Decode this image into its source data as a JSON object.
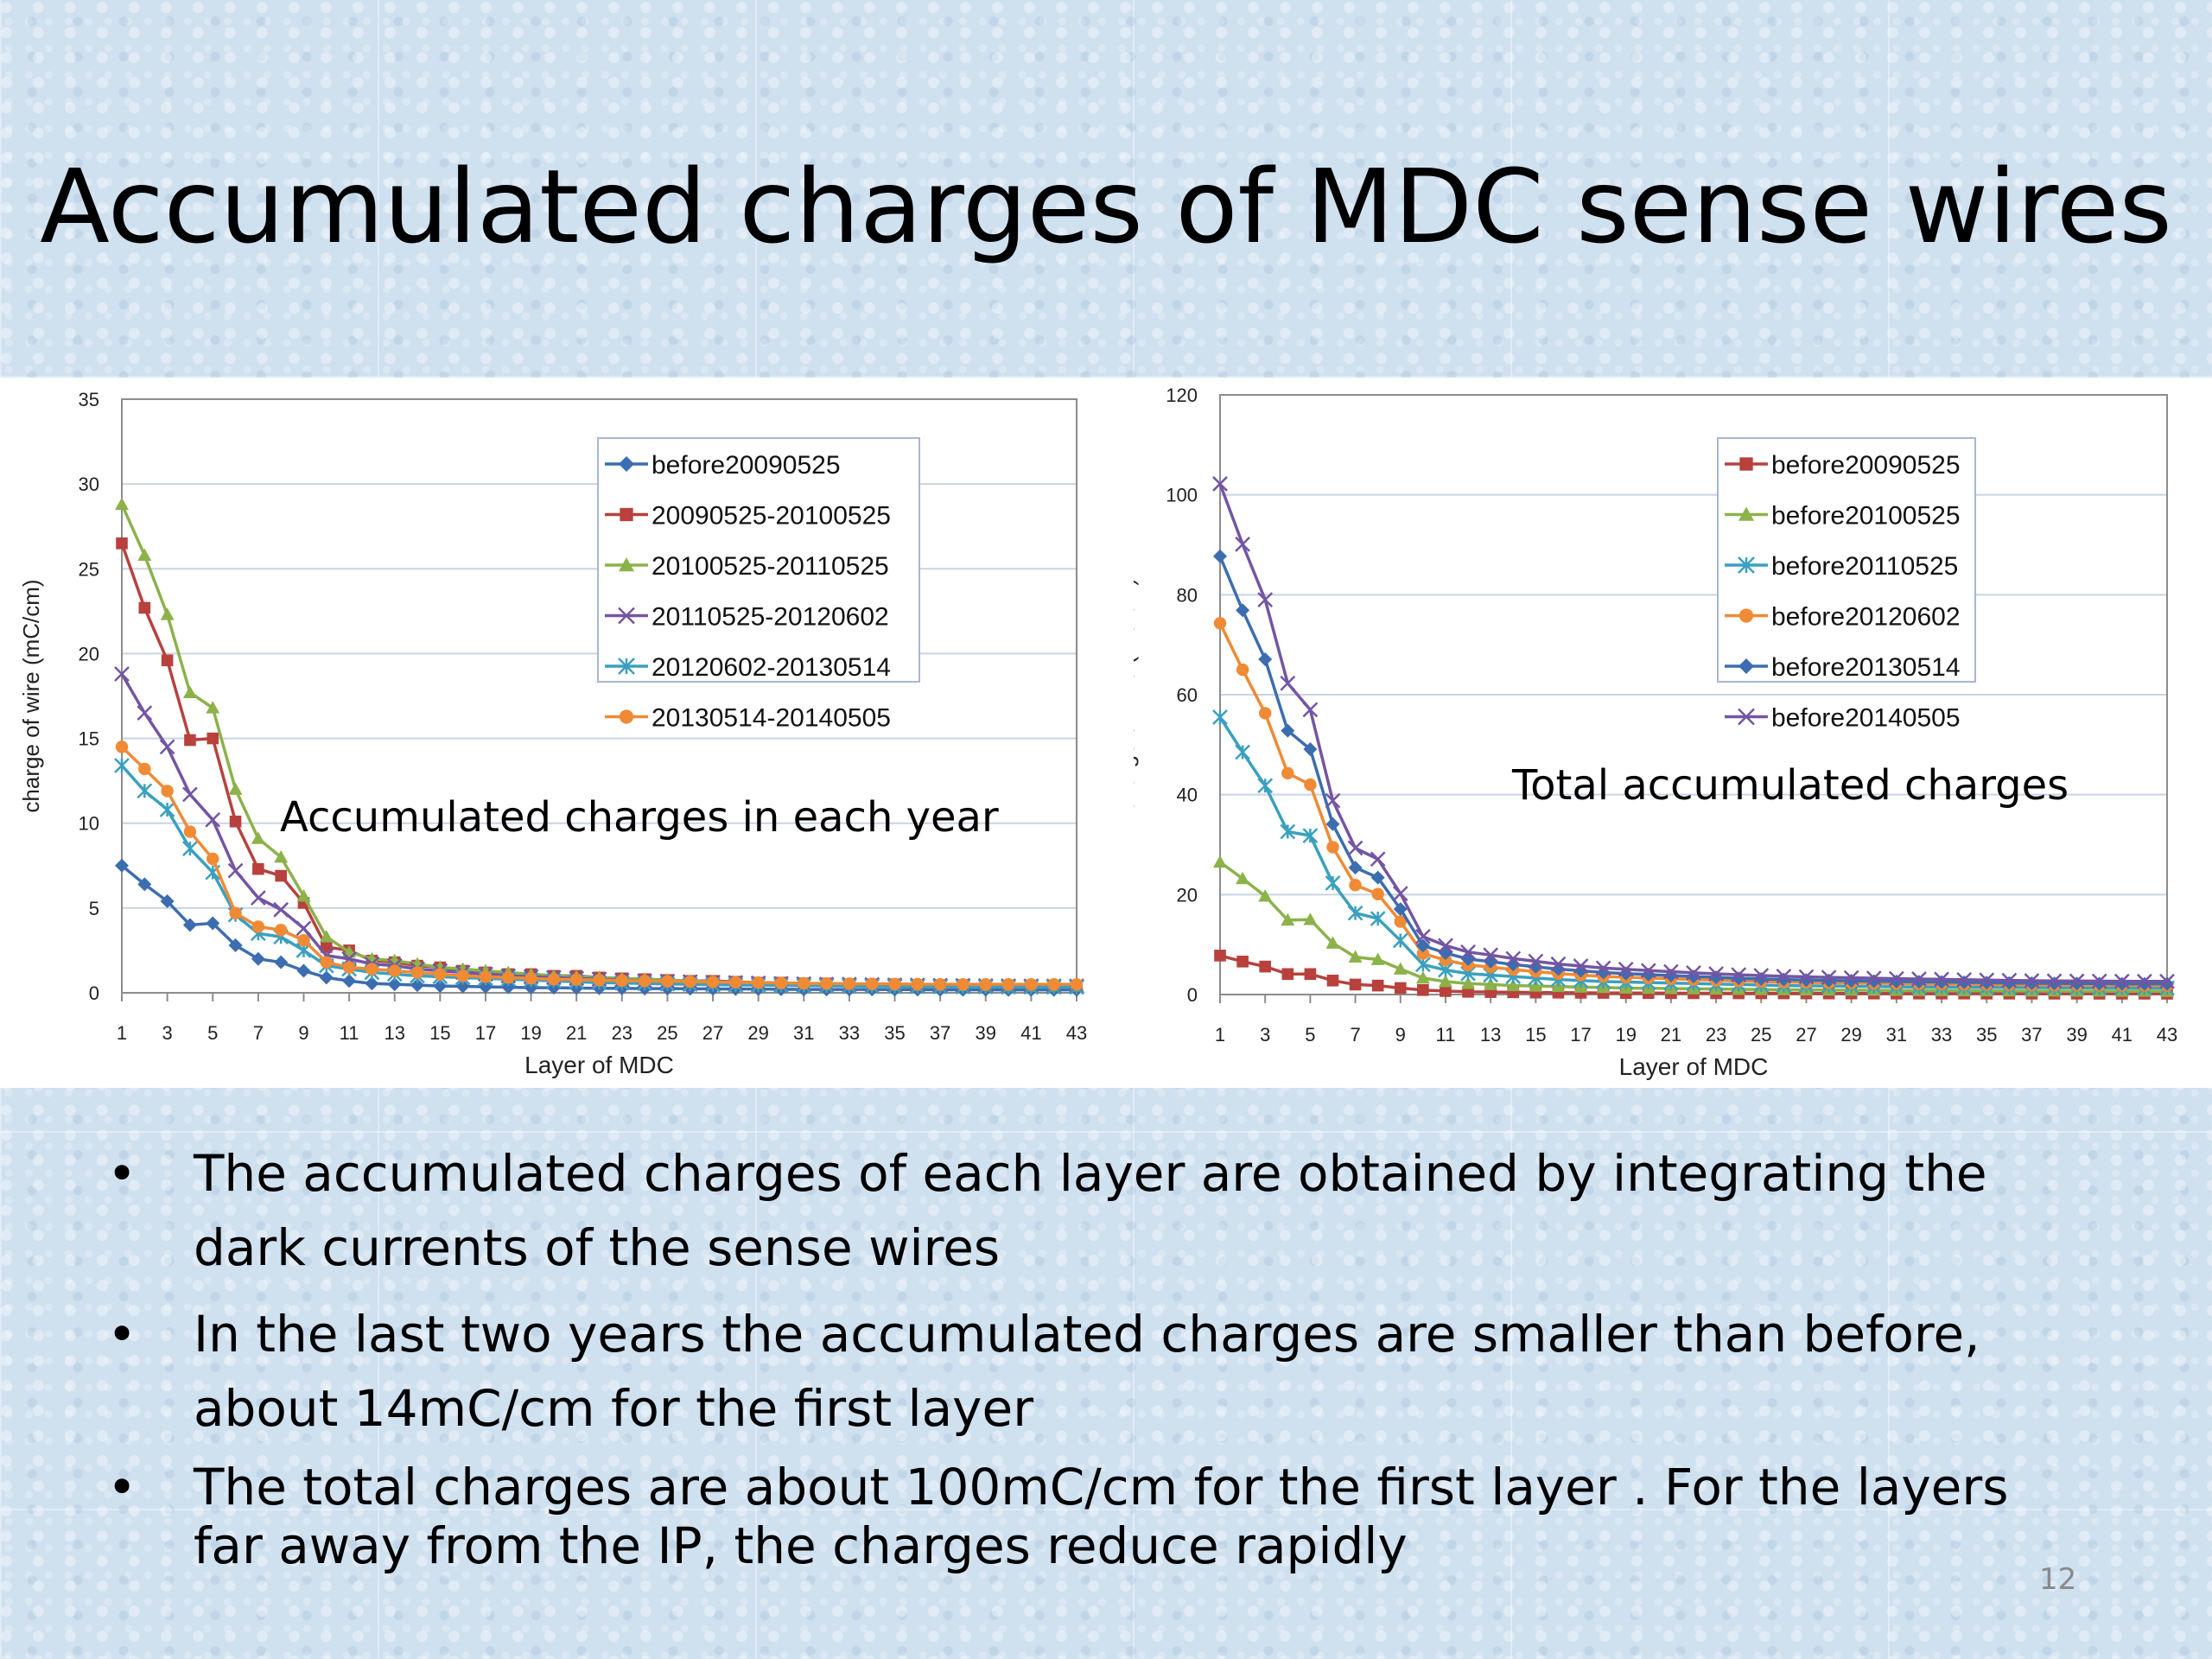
{
  "slide": {
    "title": "Accumulated charges of MDC sense wires",
    "page_number": "12",
    "bullets": [
      "The accumulated charges  of each layer are obtained by integrating the dark currents of the sense wires",
      "In the last two years the accumulated charges are smaller than before, about 14mC/cm for the first layer",
      "The total charges are about 100mC/cm for the first layer . For the layers far away from the IP, the charges reduce rapidly"
    ],
    "bullet_symbol": "•"
  },
  "chart_data": [
    {
      "type": "line",
      "annotation": "Accumulated charges in each year",
      "xlabel": "Layer of MDC",
      "ylabel": "charge of wire (mC/cm)",
      "xlim": [
        1,
        43
      ],
      "ylim": [
        0,
        35
      ],
      "xticks": [
        1,
        3,
        5,
        7,
        9,
        11,
        13,
        15,
        17,
        19,
        21,
        23,
        25,
        27,
        29,
        31,
        33,
        35,
        37,
        39,
        41,
        43
      ],
      "yticks": [
        0,
        5,
        10,
        15,
        20,
        25,
        30,
        35
      ],
      "grid": true,
      "legend_position": "top-right",
      "series": [
        {
          "name": "before20090525",
          "color": "#3c6db0",
          "marker": "diamond",
          "values": [
            7.5,
            6.4,
            5.4,
            4.0,
            4.1,
            2.8,
            2.0,
            1.8,
            1.3,
            0.9,
            0.7,
            0.55,
            0.5,
            0.45,
            0.4,
            0.38,
            0.35,
            0.33,
            0.3,
            0.3,
            0.28,
            0.27,
            0.26,
            0.25,
            0.25,
            0.24,
            0.23,
            0.22,
            0.22,
            0.21,
            0.2,
            0.2,
            0.2,
            0.2,
            0.19,
            0.19,
            0.18,
            0.18,
            0.18,
            0.17,
            0.17,
            0.17,
            0.17
          ]
        },
        {
          "name": "20090525-20100525",
          "color": "#b8413d",
          "marker": "square",
          "values": [
            26.5,
            22.7,
            19.6,
            14.9,
            15.0,
            10.1,
            7.3,
            6.9,
            5.3,
            2.7,
            2.5,
            1.9,
            1.8,
            1.6,
            1.5,
            1.3,
            1.2,
            1.1,
            1.1,
            1.0,
            1.0,
            0.9,
            0.85,
            0.8,
            0.75,
            0.7,
            0.7,
            0.65,
            0.6,
            0.6,
            0.55,
            0.55,
            0.5,
            0.5,
            0.5,
            0.45,
            0.45,
            0.45,
            0.4,
            0.4,
            0.4,
            0.4,
            0.4
          ]
        },
        {
          "name": "20100525-20110525",
          "color": "#8cb24a",
          "marker": "triangle",
          "values": [
            28.8,
            25.8,
            22.3,
            17.7,
            16.8,
            12.0,
            9.1,
            8.0,
            5.7,
            3.3,
            2.4,
            2.0,
            1.9,
            1.7,
            1.5,
            1.4,
            1.3,
            1.2,
            1.1,
            1.0,
            0.95,
            0.9,
            0.85,
            0.8,
            0.75,
            0.7,
            0.65,
            0.6,
            0.6,
            0.55,
            0.55,
            0.5,
            0.5,
            0.48,
            0.46,
            0.45,
            0.44,
            0.43,
            0.42,
            0.41,
            0.4,
            0.4,
            0.4
          ]
        },
        {
          "name": "20110525-20120602",
          "color": "#7455a3",
          "marker": "x",
          "values": [
            18.8,
            16.5,
            14.5,
            11.7,
            10.2,
            7.2,
            5.6,
            4.9,
            3.8,
            2.2,
            2.0,
            1.7,
            1.6,
            1.4,
            1.3,
            1.2,
            1.1,
            1.0,
            0.95,
            0.9,
            0.85,
            0.8,
            0.75,
            0.7,
            0.68,
            0.65,
            0.62,
            0.6,
            0.57,
            0.55,
            0.53,
            0.5,
            0.5,
            0.48,
            0.46,
            0.45,
            0.44,
            0.43,
            0.42,
            0.41,
            0.4,
            0.4,
            0.4
          ]
        },
        {
          "name": "20120602-20130514",
          "color": "#3aa0bf",
          "marker": "star",
          "values": [
            13.4,
            11.9,
            10.8,
            8.5,
            7.1,
            4.6,
            3.5,
            3.3,
            2.5,
            1.6,
            1.4,
            1.2,
            1.1,
            1.0,
            0.95,
            0.9,
            0.85,
            0.8,
            0.75,
            0.7,
            0.65,
            0.6,
            0.58,
            0.55,
            0.52,
            0.5,
            0.48,
            0.46,
            0.45,
            0.44,
            0.42,
            0.41,
            0.4,
            0.39,
            0.38,
            0.37,
            0.36,
            0.35,
            0.35,
            0.34,
            0.33,
            0.33,
            0.33
          ]
        },
        {
          "name": "20130514-20140505",
          "color": "#f08a35",
          "marker": "circle",
          "values": [
            14.5,
            13.2,
            11.9,
            9.5,
            7.9,
            4.7,
            3.9,
            3.7,
            3.1,
            1.8,
            1.5,
            1.4,
            1.3,
            1.2,
            1.1,
            1.0,
            0.95,
            0.9,
            0.85,
            0.8,
            0.78,
            0.75,
            0.72,
            0.7,
            0.68,
            0.66,
            0.64,
            0.62,
            0.6,
            0.58,
            0.56,
            0.55,
            0.54,
            0.53,
            0.52,
            0.51,
            0.5,
            0.5,
            0.5,
            0.5,
            0.5,
            0.5,
            0.5
          ]
        }
      ]
    },
    {
      "type": "line",
      "annotation": "Total accumulated charges",
      "xlabel": "Layer of MDC",
      "ylabel": "charge of wire (mC/cm)",
      "xlim": [
        1,
        43
      ],
      "ylim": [
        0,
        120
      ],
      "xticks": [
        1,
        3,
        5,
        7,
        9,
        11,
        13,
        15,
        17,
        19,
        21,
        23,
        25,
        27,
        29,
        31,
        33,
        35,
        37,
        39,
        41,
        43
      ],
      "yticks": [
        0,
        20,
        40,
        60,
        80,
        100,
        120
      ],
      "grid": true,
      "legend_position": "top-right",
      "series": [
        {
          "name": "before20090525",
          "color": "#b8413d",
          "marker": "square",
          "values": [
            7.8,
            6.6,
            5.6,
            4.1,
            4.1,
            2.8,
            2.0,
            1.8,
            1.3,
            0.9,
            0.7,
            0.55,
            0.5,
            0.45,
            0.4,
            0.38,
            0.35,
            0.33,
            0.3,
            0.3,
            0.28,
            0.27,
            0.26,
            0.25,
            0.25,
            0.24,
            0.23,
            0.22,
            0.22,
            0.21,
            0.2,
            0.2,
            0.2,
            0.2,
            0.19,
            0.19,
            0.18,
            0.18,
            0.18,
            0.17,
            0.17,
            0.17,
            0.17
          ]
        },
        {
          "name": "before20100525",
          "color": "#8cb24a",
          "marker": "triangle",
          "values": [
            26.5,
            23.2,
            19.7,
            14.9,
            15.0,
            10.3,
            7.5,
            7.0,
            5.1,
            3.3,
            2.6,
            2.2,
            2.0,
            1.8,
            1.7,
            1.6,
            1.5,
            1.4,
            1.3,
            1.25,
            1.2,
            1.15,
            1.1,
            1.05,
            1.0,
            0.95,
            0.92,
            0.9,
            0.87,
            0.85,
            0.82,
            0.8,
            0.78,
            0.76,
            0.74,
            0.72,
            0.7,
            0.69,
            0.68,
            0.67,
            0.66,
            0.65,
            0.64
          ]
        },
        {
          "name": "before20110525",
          "color": "#3aa0bf",
          "marker": "star",
          "values": [
            55.5,
            48.5,
            41.8,
            32.6,
            31.8,
            22.3,
            16.3,
            15.2,
            10.8,
            6.0,
            4.9,
            4.2,
            3.9,
            3.6,
            3.3,
            3.0,
            2.8,
            2.6,
            2.5,
            2.4,
            2.3,
            2.2,
            2.1,
            2.0,
            1.9,
            1.8,
            1.75,
            1.7,
            1.65,
            1.6,
            1.55,
            1.5,
            1.48,
            1.45,
            1.42,
            1.4,
            1.38,
            1.36,
            1.34,
            1.32,
            1.3,
            1.3,
            1.3
          ]
        },
        {
          "name": "before20120602",
          "color": "#f08a35",
          "marker": "circle",
          "values": [
            74.3,
            65.0,
            56.3,
            44.3,
            42.0,
            29.5,
            21.9,
            20.1,
            14.6,
            8.2,
            6.9,
            5.9,
            5.5,
            5.0,
            4.6,
            4.2,
            3.9,
            3.6,
            3.45,
            3.3,
            3.15,
            3.0,
            2.85,
            2.7,
            2.6,
            2.5,
            2.42,
            2.35,
            2.3,
            2.25,
            2.2,
            2.15,
            2.1,
            2.05,
            2.0,
            1.95,
            1.9,
            1.88,
            1.86,
            1.84,
            1.82,
            1.8,
            1.8
          ]
        },
        {
          "name": "before20130514",
          "color": "#3c6db0",
          "marker": "diamond",
          "values": [
            87.7,
            76.9,
            67.1,
            52.8,
            49.1,
            34.1,
            25.4,
            23.4,
            17.1,
            9.8,
            8.3,
            7.1,
            6.6,
            6.0,
            5.55,
            5.1,
            4.75,
            4.4,
            4.2,
            4.0,
            3.8,
            3.6,
            3.43,
            3.25,
            3.12,
            3.0,
            2.9,
            2.81,
            2.75,
            2.69,
            2.62,
            2.56,
            2.5,
            2.44,
            2.38,
            2.32,
            2.26,
            2.23,
            2.21,
            2.18,
            2.15,
            2.13,
            2.13
          ]
        },
        {
          "name": "before20140505",
          "color": "#7455a3",
          "marker": "x",
          "values": [
            102.2,
            90.1,
            79.0,
            62.3,
            57.0,
            38.8,
            29.3,
            27.1,
            20.2,
            11.6,
            9.8,
            8.5,
            7.9,
            7.2,
            6.65,
            6.1,
            5.7,
            5.3,
            5.05,
            4.8,
            4.58,
            4.35,
            4.15,
            3.95,
            3.8,
            3.66,
            3.54,
            3.43,
            3.35,
            3.27,
            3.18,
            3.11,
            3.04,
            2.97,
            2.9,
            2.83,
            2.76,
            2.73,
            2.71,
            2.68,
            2.65,
            2.63,
            2.63
          ]
        }
      ]
    }
  ]
}
